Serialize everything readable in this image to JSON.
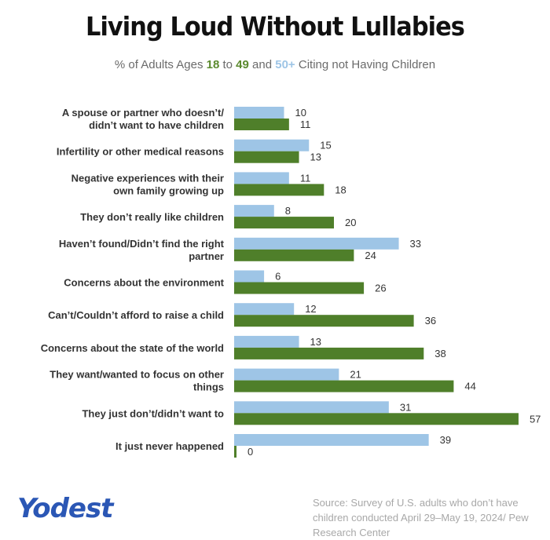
{
  "title": "Living Loud Without Lullabies",
  "subtitle": {
    "pre": "% of Adults Ages ",
    "group_a": "18",
    "mid1": " to ",
    "group_b": "49",
    "mid2": " and ",
    "group_c": "50+",
    "post": " Citing not Having Children"
  },
  "colors": {
    "light": "#9ec5e6",
    "dark": "#4f7f2a",
    "brand": "#2b57b5"
  },
  "brand": "Yodest",
  "source": "Source: Survey of U.S. adults who don’t have children conducted April 29–May 19, 2024/ Pew Research Center",
  "chart_data": {
    "type": "bar",
    "orientation": "horizontal",
    "categories": [
      [
        "A spouse or partner who doesn’t/",
        "didn’t want to have children"
      ],
      [
        "Infertility or other medical reasons"
      ],
      [
        "Negative experiences with their",
        "own family growing up"
      ],
      [
        "They don’t really like children"
      ],
      [
        "Haven’t found/Didn’t find the right",
        "partner"
      ],
      [
        "Concerns about the environment"
      ],
      [
        "Can’t/Couldn’t afford to raise a child"
      ],
      [
        "Concerns about the state of the world"
      ],
      [
        "They want/wanted to focus on other",
        "things"
      ],
      [
        "They just don’t/didn’t want to"
      ],
      [
        "It just never happened"
      ]
    ],
    "series": [
      {
        "name": "50+",
        "color": "#9ec5e6",
        "values": [
          10,
          15,
          11,
          8,
          33,
          6,
          12,
          13,
          21,
          31,
          39
        ]
      },
      {
        "name": "18 to 49",
        "color": "#4f7f2a",
        "values": [
          11,
          13,
          18,
          20,
          24,
          26,
          36,
          38,
          44,
          57,
          0
        ]
      }
    ],
    "xlim": [
      0,
      57
    ],
    "legend": "subtitle",
    "grid": false
  }
}
